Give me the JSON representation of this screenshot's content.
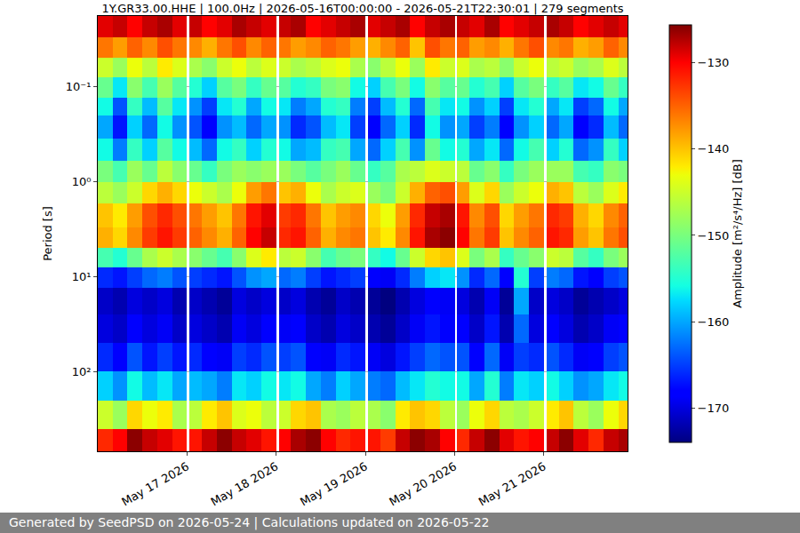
{
  "chart_data": {
    "type": "heatmap",
    "title": "1Y.GR33.00.HHE | 100.0Hz | 2026-05-16T00:00:00 - 2026-05-21T22:30:01 | 279 segments",
    "y_label": "Period [s]",
    "colorbar_label": "Amplitude [m²/s⁴/Hz] [dB]",
    "annotations": [
      "Generated by SeedPSD on 2026-05-24 | Calculations updated on 2026-05-22"
    ],
    "color": "jet",
    "log": "y",
    "grid": "y",
    "x": [
      "2026-05-16 00:00",
      "2026-05-16 04:00",
      "2026-05-16 08:00",
      "2026-05-16 12:00",
      "2026-05-16 16:00",
      "2026-05-16 20:00",
      "2026-05-17 00:00",
      "2026-05-17 00:40",
      "2026-05-17 04:00",
      "2026-05-17 08:00",
      "2026-05-17 12:00",
      "2026-05-17 16:00",
      "2026-05-17 20:00",
      "2026-05-18 00:00",
      "2026-05-18 00:40",
      "2026-05-18 04:00",
      "2026-05-18 08:00",
      "2026-05-18 12:00",
      "2026-05-18 16:00",
      "2026-05-18 20:00",
      "2026-05-19 00:00",
      "2026-05-19 00:40",
      "2026-05-19 04:00",
      "2026-05-19 08:00",
      "2026-05-19 12:00",
      "2026-05-19 16:00",
      "2026-05-19 20:00",
      "2026-05-20 00:00",
      "2026-05-20 00:40",
      "2026-05-20 04:00",
      "2026-05-20 08:00",
      "2026-05-20 12:00",
      "2026-05-20 16:00",
      "2026-05-20 20:00",
      "2026-05-21 00:00",
      "2026-05-21 00:40",
      "2026-05-21 04:00",
      "2026-05-21 08:00",
      "2026-05-21 12:00",
      "2026-05-21 16:00",
      "2026-05-21 20:00",
      "2026-05-21 22:30"
    ],
    "y": [
      0.018,
      0.03,
      0.05,
      0.08,
      0.13,
      0.2,
      0.35,
      0.6,
      1,
      1.7,
      3,
      5,
      8,
      13,
      25,
      50,
      100,
      200,
      400,
      690
    ],
    "z": [
      [
        -129,
        -128,
        -130,
        -128,
        -127,
        -129,
        null,
        -128,
        -130,
        -129,
        -127,
        -128,
        -129,
        null,
        -128,
        -127,
        -130,
        -129,
        -128,
        -127,
        null,
        -129,
        -128,
        -127,
        -130,
        -128,
        -127,
        null,
        -128,
        -129,
        -127,
        -130,
        -129,
        -128,
        null,
        -127,
        -128,
        -130,
        -129,
        -128,
        -129
      ],
      [
        -136,
        -138,
        -135,
        -137,
        -134,
        -136,
        null,
        -137,
        -139,
        -136,
        -134,
        -137,
        -135,
        null,
        -136,
        -138,
        -137,
        -135,
        -136,
        -138,
        null,
        -139,
        -137,
        -135,
        -140,
        -134,
        -136,
        null,
        -135,
        -138,
        -137,
        -139,
        -136,
        -134,
        null,
        -137,
        -136,
        -139,
        -138,
        -135,
        -137
      ],
      [
        -145,
        -148,
        -143,
        -146,
        -142,
        -144,
        null,
        -147,
        -149,
        -145,
        -143,
        -146,
        -144,
        null,
        -145,
        -147,
        -146,
        -144,
        -143,
        -147,
        null,
        -149,
        -146,
        -143,
        -148,
        -142,
        -145,
        null,
        -144,
        -147,
        -146,
        -149,
        -145,
        -143,
        null,
        -146,
        -145,
        -148,
        -147,
        -144,
        -146
      ],
      [
        -151,
        -157,
        -149,
        -153,
        -148,
        -152,
        null,
        -155,
        -158,
        -152,
        -150,
        -154,
        -151,
        null,
        -152,
        -155,
        -154,
        -150,
        -149,
        -156,
        null,
        -158,
        -153,
        -150,
        -156,
        -149,
        -152,
        null,
        -151,
        -155,
        -153,
        -158,
        -152,
        -150,
        null,
        -154,
        -152,
        -157,
        -156,
        -151,
        -154
      ],
      [
        -156,
        -164,
        -154,
        -159,
        -152,
        -157,
        null,
        -161,
        -165,
        -157,
        -155,
        -160,
        -156,
        null,
        -157,
        -162,
        -160,
        -155,
        -154,
        -162,
        null,
        -165,
        -159,
        -155,
        -163,
        -153,
        -157,
        null,
        -156,
        -161,
        -158,
        -165,
        -157,
        -155,
        null,
        -160,
        -157,
        -165,
        -163,
        -156,
        -160
      ],
      [
        -160,
        -167,
        -158,
        -163,
        -156,
        -161,
        null,
        -164,
        -168,
        -161,
        -159,
        -163,
        -160,
        null,
        -161,
        -166,
        -164,
        -159,
        -157,
        -165,
        null,
        -168,
        -163,
        -158,
        -166,
        -156,
        -161,
        null,
        -160,
        -165,
        -162,
        -168,
        -161,
        -158,
        null,
        -163,
        -160,
        -168,
        -166,
        -159,
        -163
      ],
      [
        -156,
        -162,
        -154,
        -158,
        -152,
        -156,
        null,
        -159,
        -163,
        -156,
        -154,
        -158,
        -155,
        null,
        -156,
        -160,
        -159,
        -154,
        -153,
        -160,
        null,
        -163,
        -158,
        -153,
        -161,
        -151,
        -156,
        null,
        -155,
        -160,
        -157,
        -163,
        -156,
        -153,
        null,
        -158,
        -155,
        -163,
        -161,
        -154,
        -158
      ],
      [
        -150,
        -153,
        -148,
        -151,
        -146,
        -149,
        null,
        -151,
        -154,
        -150,
        -148,
        -149,
        -148,
        null,
        -148,
        -150,
        -152,
        -150,
        -148,
        -151,
        null,
        -154,
        -152,
        -147,
        -146,
        -144,
        -145,
        null,
        -146,
        -151,
        -149,
        -154,
        -150,
        -148,
        null,
        -148,
        -148,
        -153,
        -154,
        -149,
        -150
      ],
      [
        -146,
        -148,
        -145,
        -141,
        -139,
        -141,
        null,
        -143,
        -145,
        -147,
        -143,
        -138,
        -136,
        null,
        -140,
        -139,
        -143,
        -147,
        -145,
        -144,
        null,
        -148,
        -150,
        -145,
        -139,
        -135,
        -134,
        null,
        -138,
        -144,
        -141,
        -148,
        -145,
        -143,
        null,
        -139,
        -140,
        -146,
        -148,
        -144,
        -142
      ],
      [
        -140,
        -142,
        -138,
        -134,
        -132,
        -134,
        null,
        -136,
        -138,
        -140,
        -136,
        -131,
        -129,
        null,
        -133,
        -132,
        -136,
        -140,
        -138,
        -137,
        null,
        -141,
        -143,
        -138,
        -132,
        -128,
        -127,
        null,
        -131,
        -137,
        -134,
        -141,
        -138,
        -136,
        null,
        -132,
        -133,
        -139,
        -141,
        -137,
        -135
      ],
      [
        -139,
        -141,
        -137,
        -133,
        -131,
        -133,
        null,
        -135,
        -137,
        -139,
        -135,
        -130,
        -128,
        null,
        -132,
        -131,
        -135,
        -139,
        -137,
        -136,
        null,
        -140,
        -142,
        -137,
        -131,
        -127,
        -126,
        null,
        -130,
        -136,
        -133,
        -140,
        -137,
        -135,
        null,
        -131,
        -132,
        -138,
        -140,
        -136,
        -134
      ],
      [
        -153,
        -155,
        -151,
        -147,
        -145,
        -147,
        null,
        -149,
        -151,
        -153,
        -149,
        -144,
        -142,
        null,
        -146,
        -145,
        -149,
        -153,
        -151,
        -150,
        null,
        -154,
        -156,
        -151,
        -145,
        -141,
        -140,
        null,
        -144,
        -150,
        -147,
        -154,
        -151,
        -149,
        null,
        -145,
        -146,
        -152,
        -154,
        -150,
        -148
      ],
      [
        -166,
        -167,
        -165,
        -163,
        -162,
        -164,
        null,
        -165,
        -166,
        -167,
        -164,
        -161,
        -160,
        null,
        -163,
        -162,
        -165,
        -167,
        -166,
        -165,
        null,
        -168,
        -169,
        -166,
        -162,
        -158,
        -157,
        null,
        -161,
        -166,
        -163,
        -168,
        -155,
        -165,
        null,
        -162,
        -163,
        -167,
        -168,
        -165,
        -164
      ],
      [
        -171,
        -172,
        -170,
        -171,
        -170,
        -172,
        null,
        -171,
        -172,
        -173,
        -170,
        -171,
        -170,
        null,
        -171,
        -170,
        -172,
        -173,
        -171,
        -172,
        null,
        -173,
        -174,
        -172,
        -170,
        -168,
        -169,
        null,
        -170,
        -172,
        -169,
        -173,
        -160,
        -171,
        null,
        -170,
        -171,
        -173,
        -172,
        -171,
        -170
      ],
      [
        -170,
        -171,
        -168,
        -170,
        -169,
        -171,
        null,
        -170,
        -171,
        -172,
        -169,
        -170,
        -168,
        null,
        -169,
        -168,
        -171,
        -172,
        -170,
        -171,
        null,
        -172,
        -173,
        -171,
        -169,
        -167,
        -168,
        null,
        -168,
        -171,
        -167,
        -172,
        -163,
        -170,
        null,
        -168,
        -170,
        -172,
        -171,
        -169,
        -168
      ],
      [
        -166,
        -168,
        -164,
        -167,
        -165,
        -167,
        null,
        -166,
        -168,
        -169,
        -165,
        -166,
        -164,
        null,
        -165,
        -164,
        -168,
        -169,
        -166,
        -167,
        null,
        -169,
        -170,
        -167,
        -165,
        -163,
        -164,
        null,
        -164,
        -168,
        -163,
        -169,
        -165,
        -166,
        null,
        -164,
        -166,
        -169,
        -168,
        -165,
        -164
      ],
      [
        -158,
        -161,
        -156,
        -159,
        -157,
        -160,
        null,
        -159,
        -160,
        -162,
        -157,
        -158,
        -156,
        null,
        -157,
        -156,
        -160,
        -162,
        -158,
        -160,
        null,
        -162,
        -163,
        -159,
        -157,
        -155,
        -156,
        null,
        -156,
        -160,
        -155,
        -162,
        -157,
        -158,
        null,
        -156,
        -158,
        -161,
        -160,
        -157,
        -156
      ],
      [
        -145,
        -148,
        -141,
        -143,
        -142,
        -147,
        null,
        -146,
        -142,
        -140,
        -144,
        -143,
        -146,
        null,
        -145,
        -141,
        -140,
        -147,
        -148,
        -146,
        null,
        -147,
        -149,
        -142,
        -140,
        -141,
        -146,
        null,
        -148,
        -143,
        -141,
        -146,
        -147,
        -145,
        null,
        -142,
        -140,
        -146,
        -148,
        -143,
        -141
      ],
      [
        -132,
        -130,
        -126,
        -128,
        -129,
        -131,
        null,
        -131,
        -128,
        -126,
        -128,
        -129,
        -131,
        null,
        -130,
        -127,
        -126,
        -130,
        -132,
        -131,
        null,
        -131,
        -133,
        -128,
        -126,
        -127,
        -130,
        null,
        -132,
        -128,
        -126,
        -129,
        -131,
        -130,
        null,
        -128,
        -126,
        -129,
        -132,
        -128,
        -127
      ]
    ],
    "xlim": [
      "2026-05-16 00:00",
      "2026-05-21 22:30"
    ],
    "xticks": [
      {
        "value": "2026-05-17",
        "label": "May 17 2026"
      },
      {
        "value": "2026-05-18",
        "label": "May 18 2026"
      },
      {
        "value": "2026-05-19",
        "label": "May 19 2026"
      },
      {
        "value": "2026-05-20",
        "label": "May 20 2026"
      },
      {
        "value": "2026-05-21",
        "label": "May 21 2026"
      }
    ],
    "ylim": [
      690,
      0.018
    ],
    "yticks": [
      {
        "value": 0.1,
        "label": "10⁻¹"
      },
      {
        "value": 1,
        "label": "10⁰"
      },
      {
        "value": 10,
        "label": "10¹"
      },
      {
        "value": 100,
        "label": "10²"
      }
    ],
    "zlim": [
      -174,
      -125.6
    ],
    "zticks": [
      {
        "value": -170,
        "label": "−170"
      },
      {
        "value": -160,
        "label": "−160"
      },
      {
        "value": -150,
        "label": "−150"
      },
      {
        "value": -140,
        "label": "−140"
      },
      {
        "value": -130,
        "label": "−130"
      }
    ]
  }
}
